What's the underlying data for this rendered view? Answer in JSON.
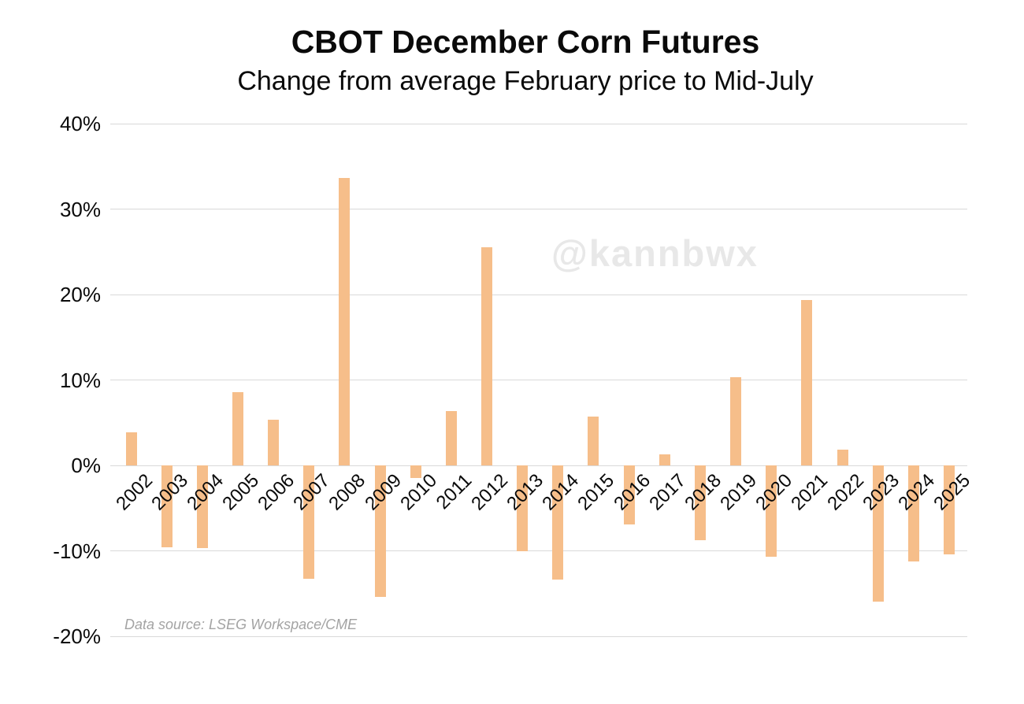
{
  "header": {
    "title": "CBOT December Corn Futures",
    "subtitle": "Change from average February price to Mid-July"
  },
  "watermark": "@kannbwx",
  "source_note": "Data source: LSEG Workspace/CME",
  "colors": {
    "bar": "#f6be8a",
    "gridline": "#d9d9d9",
    "text": "#0a0a0a",
    "watermark": "#e8e8e8",
    "source_note": "#a3a3a3",
    "background": "#ffffff"
  },
  "chart_data": {
    "type": "bar",
    "title": "CBOT December Corn Futures",
    "subtitle": "Change from average February price to Mid-July",
    "categories": [
      "2002",
      "2003",
      "2004",
      "2005",
      "2006",
      "2007",
      "2008",
      "2009",
      "2010",
      "2011",
      "2012",
      "2013",
      "2014",
      "2015",
      "2016",
      "2017",
      "2018",
      "2019",
      "2020",
      "2021",
      "2022",
      "2023",
      "2024",
      "2025"
    ],
    "values": [
      3.9,
      -9.6,
      -9.7,
      8.6,
      5.3,
      -13.3,
      33.6,
      -15.4,
      -1.5,
      6.4,
      25.5,
      -10.0,
      -13.4,
      5.7,
      -6.9,
      1.3,
      -8.8,
      10.3,
      -10.7,
      19.4,
      1.8,
      -15.9,
      -11.2,
      -10.4
    ],
    "unit": "%",
    "xlabel": "",
    "ylabel": "",
    "ylim": [
      -20,
      40
    ],
    "yticks": [
      40,
      30,
      20,
      10,
      0,
      -10,
      -20
    ],
    "ytick_labels": [
      "40%",
      "30%",
      "20%",
      "10%",
      "0%",
      "-10%",
      "-20%"
    ],
    "grid": true,
    "legend": "none",
    "bar_color": "#f6be8a"
  }
}
